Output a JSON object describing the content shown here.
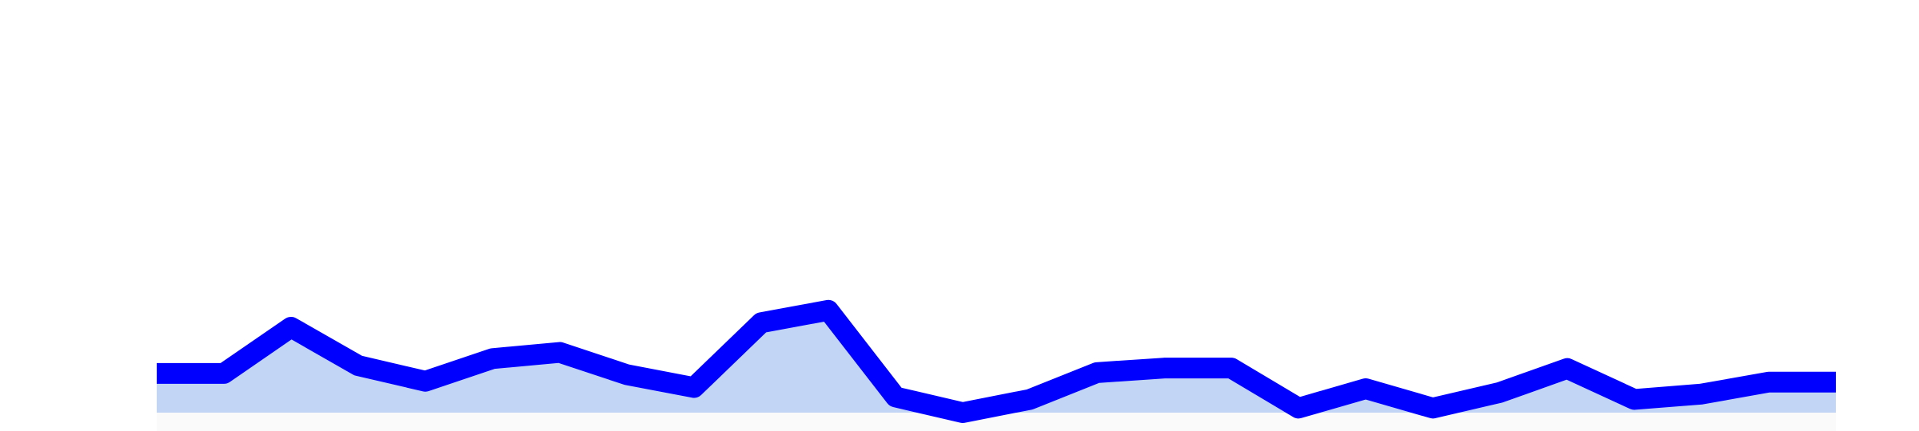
{
  "chart_data": {
    "type": "area",
    "title": "",
    "xlabel": "",
    "ylabel": "",
    "grid": false,
    "legend": false,
    "x": [
      0,
      1,
      2,
      3,
      4,
      5,
      6,
      7,
      8,
      9,
      10,
      11,
      12,
      13,
      14,
      15,
      16,
      17,
      18,
      19,
      20,
      21,
      22,
      23,
      24,
      25
    ],
    "ylim": [
      0,
      100
    ],
    "series": [
      {
        "values": [
          9.5,
          9.5,
          20.7,
          11.4,
          7.6,
          13.1,
          14.6,
          9.2,
          6.1,
          21.8,
          24.8,
          3.8,
          0,
          3.2,
          9.7,
          10.8,
          10.8,
          1.1,
          5.8,
          1.1,
          4.9,
          10.7,
          3.2,
          4.5,
          7.4,
          7.4
        ],
        "line_color": "#0000ff",
        "fill_color": "#c2d5f5"
      }
    ]
  }
}
